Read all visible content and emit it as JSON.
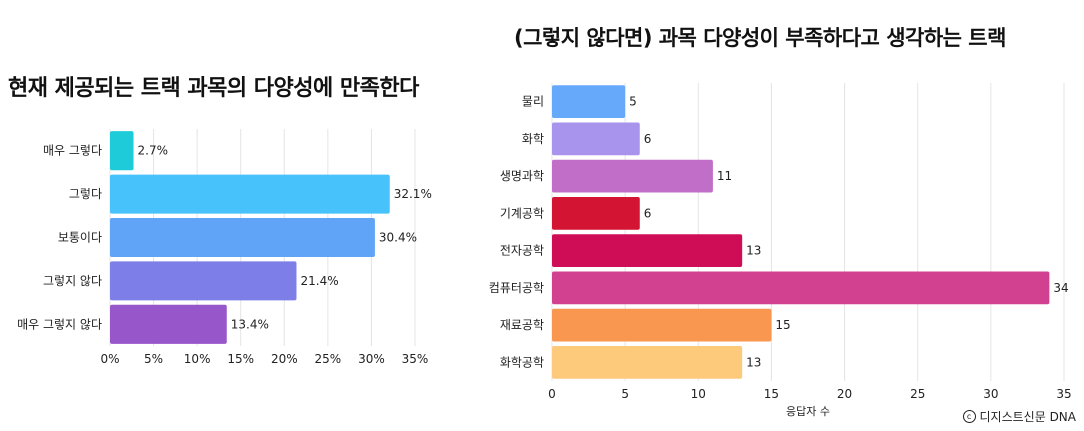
{
  "chart_data": [
    {
      "type": "bar",
      "orientation": "horizontal",
      "title": "현재 제공되는 트랙 과목의 다양성에 만족한다",
      "categories": [
        "매우 그렇다",
        "그렇다",
        "보통이다",
        "그렇지 않다",
        "매우 그렇지 않다"
      ],
      "values": [
        2.7,
        32.1,
        30.4,
        21.4,
        13.4
      ],
      "value_labels": [
        "2.7%",
        "32.1%",
        "30.4%",
        "21.4%",
        "13.4%"
      ],
      "colors": [
        "#1ECBD8",
        "#47C2FB",
        "#60A4F7",
        "#7D7EE7",
        "#9856CB"
      ],
      "xlim": [
        0,
        35
      ],
      "xticks": [
        0,
        5,
        10,
        15,
        20,
        25,
        30,
        35
      ],
      "xtick_labels": [
        "0%",
        "5%",
        "10%",
        "15%",
        "20%",
        "25%",
        "30%",
        "35%"
      ],
      "xlabel": "",
      "ylabel": "",
      "grid": true
    },
    {
      "type": "bar",
      "orientation": "horizontal",
      "title": "(그렇지 않다면) 과목 다양성이 부족하다고 생각하는 트랙",
      "categories": [
        "물리",
        "화학",
        "생명과학",
        "기계공학",
        "전자공학",
        "컴퓨터공학",
        "재료공학",
        "화학공학"
      ],
      "values": [
        5,
        6,
        11,
        6,
        13,
        34,
        15,
        13
      ],
      "value_labels": [
        "5",
        "6",
        "11",
        "6",
        "13",
        "34",
        "15",
        "13"
      ],
      "colors": [
        "#66A8FA",
        "#A994ED",
        "#C06EC8",
        "#D31533",
        "#CF0D56",
        "#D2418F",
        "#F99650",
        "#FDC97A"
      ],
      "xlim": [
        0,
        35
      ],
      "xticks": [
        0,
        5,
        10,
        15,
        20,
        25,
        30,
        35
      ],
      "xtick_labels": [
        "0",
        "5",
        "10",
        "15",
        "20",
        "25",
        "30",
        "35"
      ],
      "xlabel": "응답자 수",
      "ylabel": "",
      "grid": true
    }
  ],
  "credit": "디지스트신문 DNA",
  "credit_icon": "copyright-icon"
}
